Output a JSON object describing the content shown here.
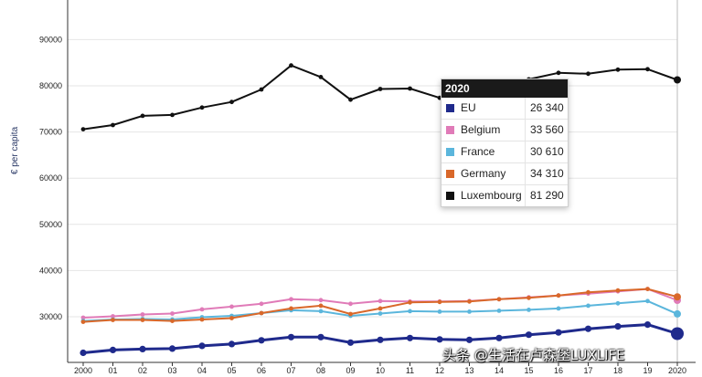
{
  "chart_data": {
    "type": "line",
    "ylabel": "€ per capita",
    "x": [
      "2000",
      "01",
      "02",
      "03",
      "04",
      "05",
      "06",
      "07",
      "08",
      "09",
      "10",
      "11",
      "12",
      "13",
      "14",
      "15",
      "16",
      "17",
      "18",
      "19",
      "2020"
    ],
    "y_ticks": [
      "30000",
      "40000",
      "50000",
      "60000",
      "70000",
      "80000",
      "90000"
    ],
    "ylim": [
      22000,
      98000
    ],
    "grid": true,
    "series": [
      {
        "name": "EU",
        "color": "#1f2a8c",
        "values": [
          22200,
          22800,
          23000,
          23100,
          23700,
          24100,
          24900,
          25600,
          25600,
          24400,
          25000,
          25400,
          25100,
          25000,
          25400,
          26100,
          26600,
          27400,
          27900,
          28300,
          26340
        ]
      },
      {
        "name": "Belgium",
        "color": "#e07bb8",
        "values": [
          29800,
          30100,
          30500,
          30700,
          31600,
          32200,
          32800,
          33800,
          33600,
          32800,
          33400,
          33300,
          33300,
          33400,
          33800,
          34200,
          34600,
          35000,
          35500,
          36000,
          33560
        ]
      },
      {
        "name": "France",
        "color": "#5bb6dc",
        "values": [
          29100,
          29400,
          29500,
          29400,
          29900,
          30200,
          30800,
          31400,
          31200,
          30200,
          30700,
          31200,
          31100,
          31100,
          31300,
          31500,
          31800,
          32400,
          32900,
          33400,
          30610
        ]
      },
      {
        "name": "Germany",
        "color": "#d9682a",
        "values": [
          28900,
          29300,
          29300,
          29100,
          29400,
          29700,
          30800,
          31800,
          32400,
          30600,
          31800,
          33100,
          33200,
          33300,
          33800,
          34100,
          34600,
          35300,
          35700,
          36000,
          34310
        ]
      },
      {
        "name": "Luxembourg",
        "color": "#111111",
        "values": [
          70600,
          71500,
          73500,
          73700,
          75300,
          76500,
          79200,
          84400,
          81900,
          77000,
          79300,
          79400,
          77400,
          78200,
          79500,
          81400,
          82800,
          82600,
          83500,
          83600,
          81290
        ]
      }
    ],
    "highlight_index": 20,
    "tooltip": {
      "title": "2020",
      "rows": [
        {
          "name": "EU",
          "value": "26 340",
          "color": "#1f2a8c"
        },
        {
          "name": "Belgium",
          "value": "33 560",
          "color": "#e07bb8"
        },
        {
          "name": "France",
          "value": "30 610",
          "color": "#5bb6dc"
        },
        {
          "name": "Germany",
          "value": "34 310",
          "color": "#d9682a"
        },
        {
          "name": "Luxembourg",
          "value": "81 290",
          "color": "#111111"
        }
      ]
    }
  },
  "watermark": "头条 @生活在卢森堡LUXLIFE"
}
